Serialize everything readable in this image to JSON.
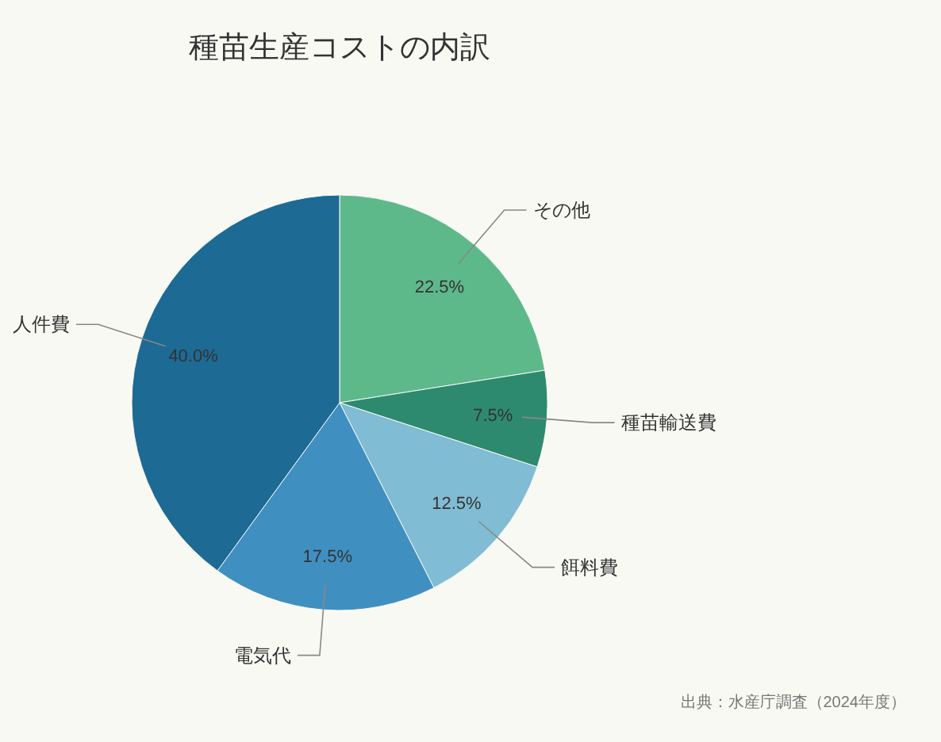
{
  "chart_data": {
    "type": "pie",
    "title": "種苗生産コストの内訳",
    "categories": [
      "その他",
      "種苗輸送費",
      "餌料費",
      "電気代",
      "人件費"
    ],
    "values": [
      22.5,
      7.5,
      12.5,
      17.5,
      40.0
    ],
    "value_labels": [
      "22.5%",
      "7.5%",
      "12.5%",
      "17.5%",
      "40.0%"
    ],
    "colors": [
      "#5eb98a",
      "#2e8a6f",
      "#80bcd3",
      "#408fc1",
      "#1d6a94"
    ],
    "annotations": [
      "出典：水産庁調査（2024年度）"
    ]
  }
}
